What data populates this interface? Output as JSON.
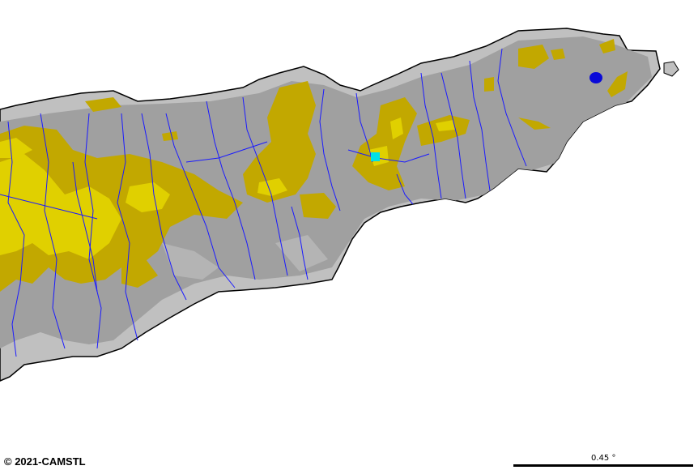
{
  "map": {
    "copyright": "© 2021-CAMSTL",
    "scale_label": "0.45 °",
    "colors": {
      "background": "#ffffff",
      "coast_outline": "#000000",
      "lowland": "#c0c0c0",
      "midland": "#a0a0a0",
      "highland": "#c2a800",
      "peak": "#e0d000",
      "river": "#1a1aff",
      "lake": "#0a0ad8",
      "marker": "#00e0e8"
    }
  }
}
